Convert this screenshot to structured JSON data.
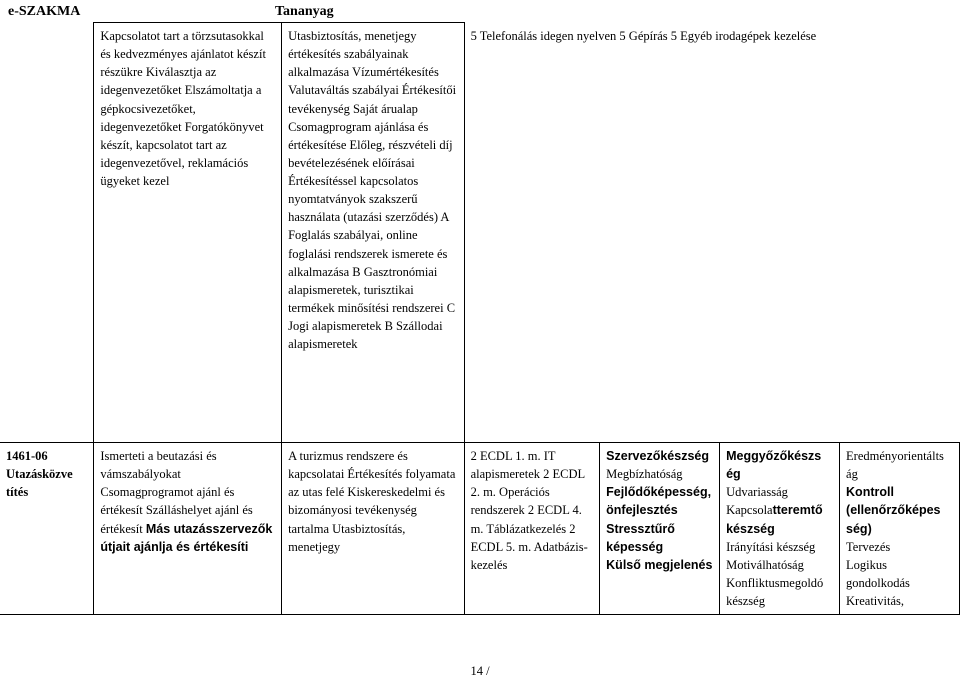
{
  "header": {
    "left": "e-SZAKMA",
    "right": "Tananyag"
  },
  "row0": {
    "c0": "",
    "c1": "Kapcsolatot tart a törzsutasokkal és kedvezményes ajánlatot készít részükre Kiválasztja az idegenvezetőket Elszámoltatja a gépkocsivezetőket, idegenvezetőket Forgatókönyvet készít, kapcsolatot tart az idegenvezetővel, reklamációs ügyeket kezel",
    "c2": "Utasbiztosítás, menetjegy értékesítés szabályainak alkalmazása Vízumértékesítés Valutaváltás szabályai Értékesítői tevékenység  Saját árualap  Csomagprogram ajánlása és értékesítése    Előleg, részvételi díj bevételezésének előírásai   Értékesítéssel kapcsolatos nyomtatványok szakszerű használata (utazási szerződés) A Foglalás szabályai, online foglalási rendszerek ismerete és alkalmazása B Gasztronómiai alapismeretek, turisztikai termékek minősítési rendszerei C Jogi alapismeretek B Szállodai alapismeretek",
    "c3": "5 Telefonálás idegen nyelven 5 Gépírás 5 Egyéb irodagépek kezelése"
  },
  "row1": {
    "code": "1461-06",
    "codetitle": "Utazásközve títés",
    "c1a": "Ismerteti a beutazási és vámszabályokat Csomagprogramot ajánl és értékesít Szálláshelyet ajánl és értékesít",
    "c1b": "Más utazásszervezők útjait ajánlja és értékesíti",
    "c2": "A turizmus rendszere és kapcsolatai  Értékesítés folyamata az utas felé  Kiskereskedelmi és bizományosi tevékenység tartalma  Utasbiztosítás, menetjegy",
    "c3": "2 ECDL 1. m. IT alapismeretek 2 ECDL 2. m. Operációs rendszerek 2  ECDL 4. m. Táblázatkezelés 2 ECDL 5. m. Adatbázis-kezelés",
    "c4a": "Szervezőkészség",
    "c4b": "Megbízhatóság",
    "c4c": "Fejlődőképesség, önfejlesztés",
    "c4d": "Stressztűrő képesség",
    "c4e": "Külső megjelenés",
    "c5a": "Meggyőzőkészs ég",
    "c5b": "Udvariasság",
    "c5c1": "Kapcsola",
    "c5c2": "tteremtő készség",
    "c5d": "Irányítási készség",
    "c5e": "Motiválhatóság",
    "c5f": "Konfliktusmegoldó készség",
    "c6a": "Eredményorientálts ág",
    "c6b": "Kontroll (ellenőrzőképes ség)",
    "c6c": "Tervezés",
    "c6d": "Logikus gondolkodás",
    "c6e": "Kreativitás,"
  },
  "footer": "14 /"
}
